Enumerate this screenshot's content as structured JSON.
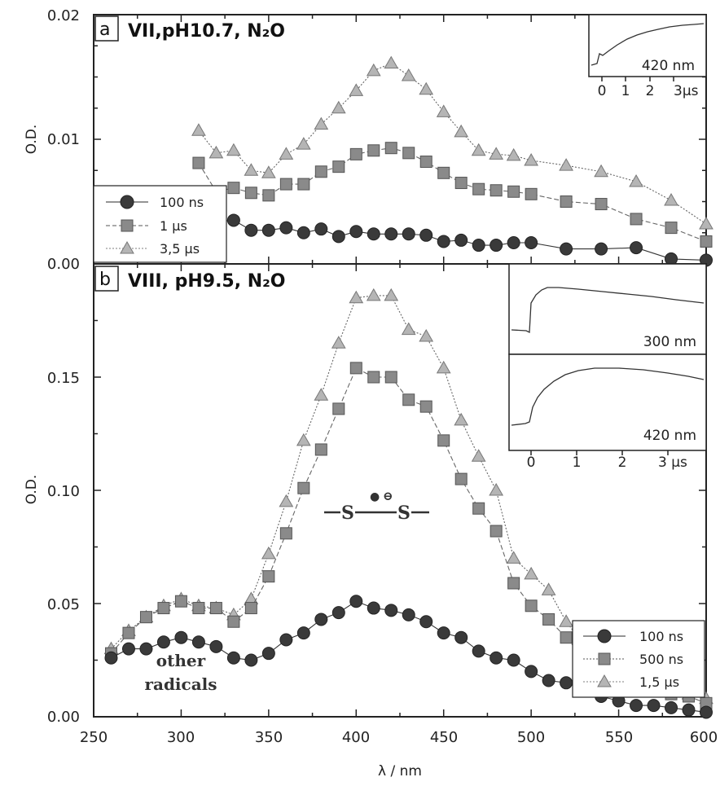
{
  "chart_data": [
    {
      "panel": "a",
      "type": "line",
      "title": "VII,pH10.7, N₂O",
      "ylabel": "O.D.",
      "xlim": [
        250,
        600
      ],
      "ylim": [
        0,
        0.02
      ],
      "yticks": [
        "0.00",
        "0.01",
        "0.02"
      ],
      "legend_position": "left",
      "series": [
        {
          "name": "100 ns",
          "marker": "circle",
          "color": "#3a3a3a",
          "x": [
            310,
            320,
            330,
            340,
            350,
            360,
            370,
            380,
            390,
            400,
            410,
            420,
            430,
            440,
            450,
            460,
            470,
            480,
            490,
            500,
            520,
            540,
            560,
            580,
            600
          ],
          "y": [
            0.0036,
            0.0034,
            0.0035,
            0.0027,
            0.0027,
            0.0029,
            0.0025,
            0.0028,
            0.0022,
            0.0026,
            0.0024,
            0.0024,
            0.0024,
            0.0023,
            0.0018,
            0.0019,
            0.0015,
            0.0015,
            0.0017,
            0.0017,
            0.0012,
            0.0012,
            0.0013,
            0.0004,
            0.0003
          ]
        },
        {
          "name": "1 µs",
          "marker": "square",
          "color": "#8a8a8a",
          "x": [
            310,
            320,
            330,
            340,
            350,
            360,
            370,
            380,
            390,
            400,
            410,
            420,
            430,
            440,
            450,
            460,
            470,
            480,
            490,
            500,
            520,
            540,
            560,
            580,
            600
          ],
          "y": [
            0.0081,
            0.0058,
            0.0061,
            0.0057,
            0.0055,
            0.0064,
            0.0064,
            0.0074,
            0.0078,
            0.0088,
            0.0091,
            0.0093,
            0.0089,
            0.0082,
            0.0073,
            0.0065,
            0.006,
            0.0059,
            0.0058,
            0.0056,
            0.005,
            0.0048,
            0.0036,
            0.0029,
            0.0018
          ]
        },
        {
          "name": "3,5 µs",
          "marker": "triangle",
          "color": "#b5b5b5",
          "x": [
            310,
            320,
            330,
            340,
            350,
            360,
            370,
            380,
            390,
            400,
            410,
            420,
            430,
            440,
            450,
            460,
            470,
            480,
            490,
            500,
            520,
            540,
            560,
            580,
            600
          ],
          "y": [
            0.0107,
            0.0089,
            0.0091,
            0.0075,
            0.0073,
            0.0088,
            0.0096,
            0.0112,
            0.0125,
            0.0139,
            0.0155,
            0.0161,
            0.0151,
            0.014,
            0.0122,
            0.0106,
            0.0091,
            0.0088,
            0.0087,
            0.0083,
            0.0079,
            0.0074,
            0.0066,
            0.0051,
            0.0032
          ]
        }
      ],
      "inset": {
        "label": "420 nm",
        "xticks": [
          "0",
          "1",
          "2",
          "3µs"
        ]
      }
    },
    {
      "panel": "b",
      "type": "line",
      "title": "VIII, pH9.5, N₂O",
      "xlabel": "λ / nm",
      "ylabel": "O.D.",
      "xlim": [
        250,
        600
      ],
      "ylim": [
        0,
        0.2
      ],
      "xticks": [
        "250",
        "300",
        "350",
        "400",
        "450",
        "500",
        "550",
        "600"
      ],
      "yticks": [
        "0.00",
        "0.05",
        "0.10",
        "0.15"
      ],
      "legend_position": "right",
      "series": [
        {
          "name": "100 ns",
          "marker": "circle",
          "color": "#3a3a3a",
          "x": [
            260,
            270,
            280,
            290,
            300,
            310,
            320,
            330,
            340,
            350,
            360,
            370,
            380,
            390,
            400,
            410,
            420,
            430,
            440,
            450,
            460,
            470,
            480,
            490,
            500,
            510,
            520,
            530,
            540,
            550,
            560,
            570,
            580,
            590,
            600
          ],
          "y": [
            0.026,
            0.03,
            0.03,
            0.033,
            0.035,
            0.033,
            0.031,
            0.026,
            0.025,
            0.028,
            0.034,
            0.037,
            0.043,
            0.046,
            0.051,
            0.048,
            0.047,
            0.045,
            0.042,
            0.037,
            0.035,
            0.029,
            0.026,
            0.025,
            0.02,
            0.016,
            0.015,
            0.012,
            0.009,
            0.007,
            0.005,
            0.005,
            0.004,
            0.003,
            0.002
          ]
        },
        {
          "name": "500 ns",
          "marker": "square",
          "color": "#8a8a8a",
          "x": [
            260,
            270,
            280,
            290,
            300,
            310,
            320,
            330,
            340,
            350,
            360,
            370,
            380,
            390,
            400,
            410,
            420,
            430,
            440,
            450,
            460,
            470,
            480,
            490,
            500,
            510,
            520,
            530,
            540,
            550,
            560,
            570,
            580,
            590,
            600
          ],
          "y": [
            0.028,
            0.037,
            0.044,
            0.048,
            0.051,
            0.048,
            0.048,
            0.042,
            0.048,
            0.062,
            0.081,
            0.101,
            0.118,
            0.136,
            0.154,
            0.15,
            0.15,
            0.14,
            0.137,
            0.122,
            0.105,
            0.092,
            0.082,
            0.059,
            0.049,
            0.043,
            0.035,
            0.026,
            0.021,
            0.017,
            0.014,
            0.013,
            0.01,
            0.009,
            0.006
          ]
        },
        {
          "name": "1,5 µs",
          "marker": "triangle",
          "color": "#b5b5b5",
          "x": [
            260,
            270,
            280,
            290,
            300,
            310,
            320,
            330,
            340,
            350,
            360,
            370,
            380,
            390,
            400,
            410,
            420,
            430,
            440,
            450,
            460,
            470,
            480,
            490,
            500,
            510,
            520,
            530,
            540,
            550,
            560,
            570,
            580,
            590,
            600
          ],
          "y": [
            0.03,
            0.038,
            0.044,
            0.049,
            0.052,
            0.049,
            0.048,
            0.045,
            0.052,
            0.072,
            0.095,
            0.122,
            0.142,
            0.165,
            0.185,
            0.186,
            0.186,
            0.171,
            0.168,
            0.154,
            0.131,
            0.115,
            0.1,
            0.07,
            0.063,
            0.056,
            0.042,
            0.032,
            0.025,
            0.022,
            0.017,
            0.014,
            0.011,
            0.01,
            0.008
          ]
        }
      ],
      "annotations": [
        "other radicals"
      ],
      "structure_label": {
        "left_bond": "—",
        "atom1": "S",
        "atom2": "S",
        "right_bond": "—",
        "dot": "●",
        "charge": "⊖"
      },
      "insets": [
        {
          "label": "300 nm"
        },
        {
          "label": "420 nm",
          "xticks": [
            "0",
            "1",
            "2",
            "3 µs"
          ]
        }
      ]
    }
  ]
}
